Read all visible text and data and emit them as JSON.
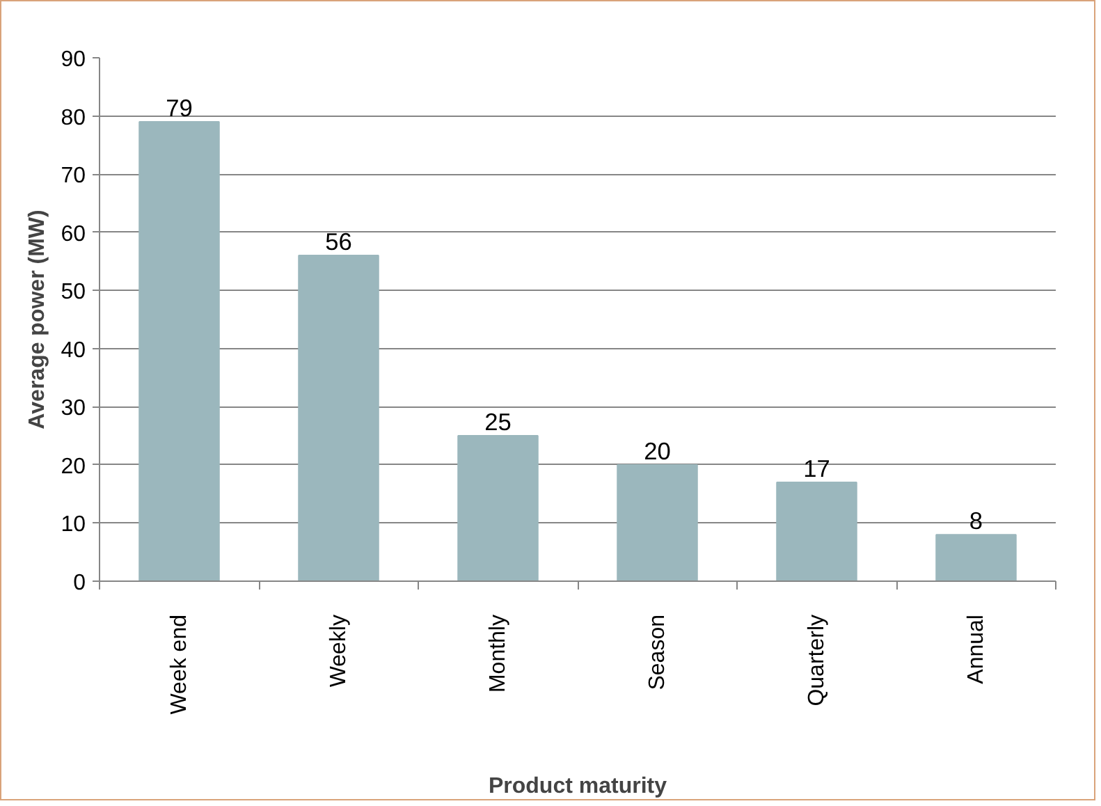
{
  "chart_data": {
    "type": "bar",
    "xlabel": "Product maturity",
    "ylabel": "Average power (MW)",
    "categories": [
      "Week end",
      "Weekly",
      "Monthly",
      "Season",
      "Quarterly",
      "Annual"
    ],
    "values": [
      79,
      56,
      25,
      20,
      17,
      8
    ],
    "color": "#9bb7bd",
    "ylim": [
      0,
      90
    ],
    "yticks": [
      0,
      10,
      20,
      30,
      40,
      50,
      60,
      70,
      80,
      90
    ],
    "grid": "y",
    "data_labels": true
  }
}
